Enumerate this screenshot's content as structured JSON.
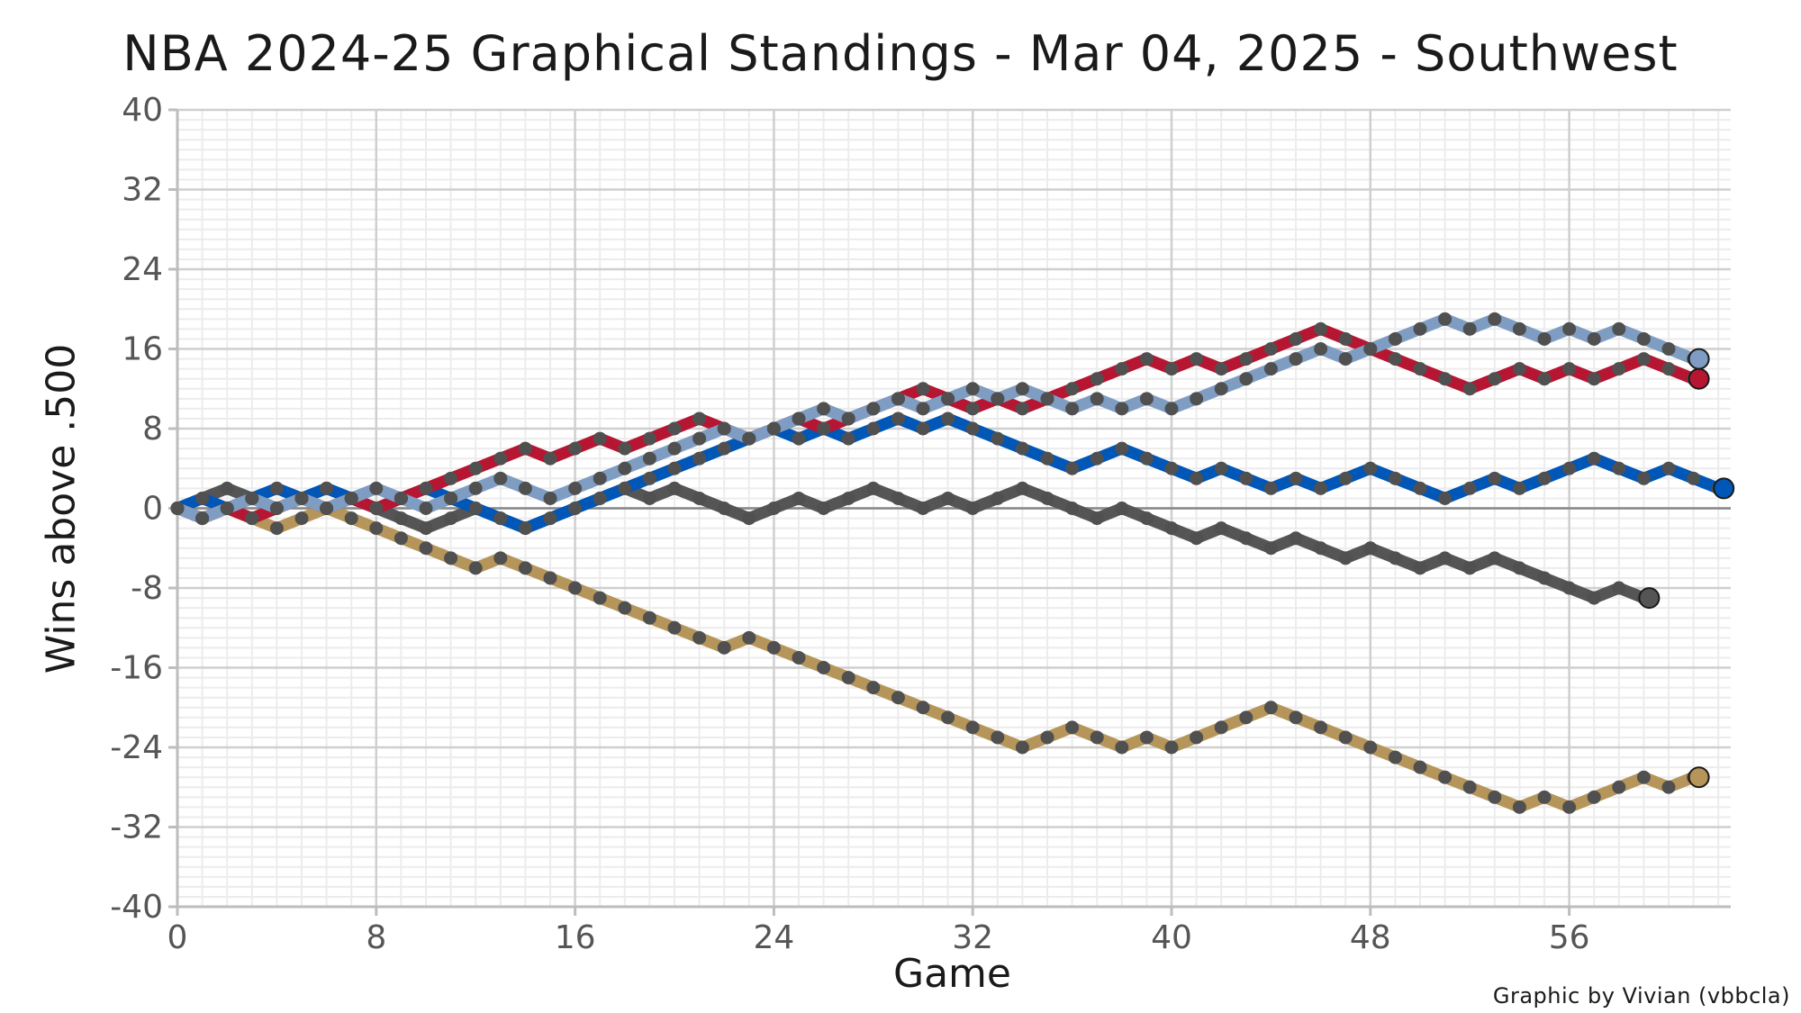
{
  "chart_data": {
    "type": "line",
    "title": "NBA 2024-25 Graphical Standings - Mar 04, 2025 - Southwest",
    "xlabel": "Game",
    "ylabel": "Wins above .500",
    "caption": "Graphic by Vivian (vbbcla)",
    "xlim": [
      0,
      62.5
    ],
    "ylim": [
      -40,
      40
    ],
    "x_ticks": [
      0,
      8,
      16,
      24,
      32,
      40,
      48,
      56
    ],
    "y_ticks": [
      -40,
      -32,
      -24,
      -16,
      -8,
      0,
      8,
      16,
      24,
      32,
      40
    ],
    "x_tick_labels": [
      "0",
      "8",
      "16",
      "24",
      "32",
      "40",
      "48",
      "56"
    ],
    "y_tick_labels": [
      "-40",
      "-32",
      "-24",
      "-16",
      "-8",
      "0",
      "8",
      "16",
      "24",
      "32",
      "40"
    ],
    "grid": true,
    "legend": "none (team logos at line ends)",
    "series": [
      {
        "logo": "pelicans-logo",
        "color": "#b5955a",
        "values": [
          0,
          -1,
          0,
          -1,
          -2,
          -1,
          0,
          -1,
          -2,
          -3,
          -4,
          -5,
          -6,
          -5,
          -6,
          -7,
          -8,
          -9,
          -10,
          -11,
          -12,
          -13,
          -14,
          -13,
          -14,
          -15,
          -16,
          -17,
          -18,
          -19,
          -20,
          -21,
          -22,
          -23,
          -24,
          -23,
          -22,
          -23,
          -24,
          -23,
          -24,
          -23,
          -22,
          -21,
          -20,
          -21,
          -22,
          -23,
          -24,
          -25,
          -26,
          -27,
          -28,
          -29,
          -30,
          -29,
          -30,
          -29,
          -28,
          -27,
          -28,
          -27
        ]
      },
      {
        "logo": "spurs-logo",
        "color": "#555555",
        "values": [
          0,
          1,
          2,
          1,
          0,
          1,
          2,
          1,
          0,
          -1,
          -2,
          -1,
          0,
          -1,
          -2,
          -1,
          0,
          1,
          2,
          1,
          2,
          1,
          0,
          -1,
          0,
          1,
          0,
          1,
          2,
          1,
          0,
          1,
          0,
          1,
          2,
          1,
          0,
          -1,
          0,
          -1,
          -2,
          -3,
          -2,
          -3,
          -4,
          -3,
          -4,
          -5,
          -4,
          -5,
          -6,
          -5,
          -6,
          -5,
          -6,
          -7,
          -8,
          -9,
          -8,
          -9
        ]
      },
      {
        "logo": "mavericks-logo",
        "color": "#0057b8",
        "values": [
          0,
          1,
          0,
          1,
          2,
          1,
          2,
          1,
          0,
          1,
          2,
          1,
          0,
          -1,
          -2,
          -1,
          0,
          1,
          2,
          3,
          4,
          5,
          6,
          7,
          8,
          7,
          8,
          7,
          8,
          9,
          8,
          9,
          8,
          7,
          6,
          5,
          4,
          5,
          6,
          5,
          4,
          3,
          4,
          3,
          2,
          3,
          2,
          3,
          4,
          3,
          2,
          1,
          2,
          3,
          2,
          3,
          4,
          5,
          4,
          3,
          4,
          3,
          2
        ]
      },
      {
        "logo": "rockets-logo",
        "color": "#b71632",
        "values": [
          0,
          -1,
          0,
          -1,
          0,
          1,
          0,
          1,
          0,
          1,
          2,
          3,
          4,
          5,
          6,
          5,
          6,
          7,
          6,
          7,
          8,
          9,
          8,
          7,
          8,
          9,
          8,
          9,
          10,
          11,
          12,
          11,
          10,
          11,
          10,
          11,
          12,
          13,
          14,
          15,
          14,
          15,
          14,
          15,
          16,
          17,
          18,
          17,
          16,
          15,
          14,
          13,
          12,
          13,
          14,
          13,
          14,
          13,
          14,
          15,
          14,
          13
        ]
      },
      {
        "logo": "grizzlies-logo",
        "color": "#7f9dc2",
        "values": [
          0,
          -1,
          0,
          1,
          0,
          1,
          0,
          1,
          2,
          1,
          0,
          1,
          2,
          3,
          2,
          1,
          2,
          3,
          4,
          5,
          6,
          7,
          8,
          7,
          8,
          9,
          10,
          9,
          10,
          11,
          10,
          11,
          12,
          11,
          12,
          11,
          10,
          11,
          10,
          11,
          10,
          11,
          12,
          13,
          14,
          15,
          16,
          15,
          16,
          17,
          18,
          19,
          18,
          19,
          18,
          17,
          18,
          17,
          18,
          17,
          16,
          15
        ]
      }
    ]
  }
}
